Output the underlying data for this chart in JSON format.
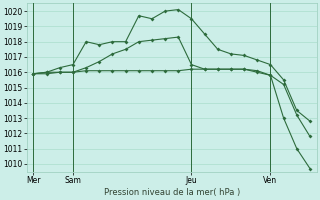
{
  "background_color": "#cceee8",
  "grid_color": "#aaddcc",
  "line_color": "#2d6b3c",
  "xlabel": "Pression niveau de la mer( hPa )",
  "ylim": [
    1009.5,
    1020.5
  ],
  "xtick_labels": [
    "Mer",
    "Sam",
    "Jeu",
    "Ven"
  ],
  "xtick_positions": [
    0,
    3,
    12,
    18
  ],
  "vline_positions": [
    0,
    3,
    12,
    18
  ],
  "series1_x": [
    0,
    1,
    2,
    3,
    4,
    5,
    6,
    7,
    8,
    9,
    10,
    11,
    12,
    13,
    14,
    15,
    16,
    17,
    18,
    19,
    20,
    21
  ],
  "series1_y": [
    1015.9,
    1015.9,
    1016.0,
    1016.0,
    1016.1,
    1016.1,
    1016.1,
    1016.1,
    1016.1,
    1016.1,
    1016.1,
    1016.1,
    1016.2,
    1016.2,
    1016.2,
    1016.2,
    1016.2,
    1016.0,
    1015.8,
    1015.2,
    1013.2,
    1011.8
  ],
  "series2_x": [
    0,
    1,
    2,
    3,
    4,
    5,
    6,
    7,
    8,
    9,
    10,
    11,
    12,
    13,
    14,
    15,
    16,
    17,
    18,
    19,
    20,
    21
  ],
  "series2_y": [
    1015.9,
    1016.0,
    1016.3,
    1016.5,
    1018.0,
    1017.8,
    1018.0,
    1018.0,
    1019.7,
    1019.5,
    1020.0,
    1020.1,
    1019.5,
    1018.5,
    1017.5,
    1017.2,
    1017.1,
    1016.8,
    1016.5,
    1015.5,
    1013.5,
    1012.8
  ],
  "series3_x": [
    0,
    1,
    2,
    3,
    4,
    5,
    6,
    7,
    8,
    9,
    10,
    11,
    12,
    13,
    14,
    15,
    16,
    17,
    18,
    19,
    20,
    21
  ],
  "series3_y": [
    1015.9,
    1016.0,
    1016.0,
    1016.0,
    1016.3,
    1016.7,
    1017.2,
    1017.5,
    1018.0,
    1018.1,
    1018.2,
    1018.3,
    1016.5,
    1016.2,
    1016.2,
    1016.2,
    1016.2,
    1016.1,
    1015.8,
    1013.0,
    1011.0,
    1009.7
  ],
  "n_points": 22,
  "xlim": [
    -0.5,
    21.5
  ],
  "marker_size": 2.0,
  "linewidth": 0.8,
  "ytick_fontsize": 5.5,
  "xtick_fontsize": 5.5,
  "xlabel_fontsize": 6.0
}
